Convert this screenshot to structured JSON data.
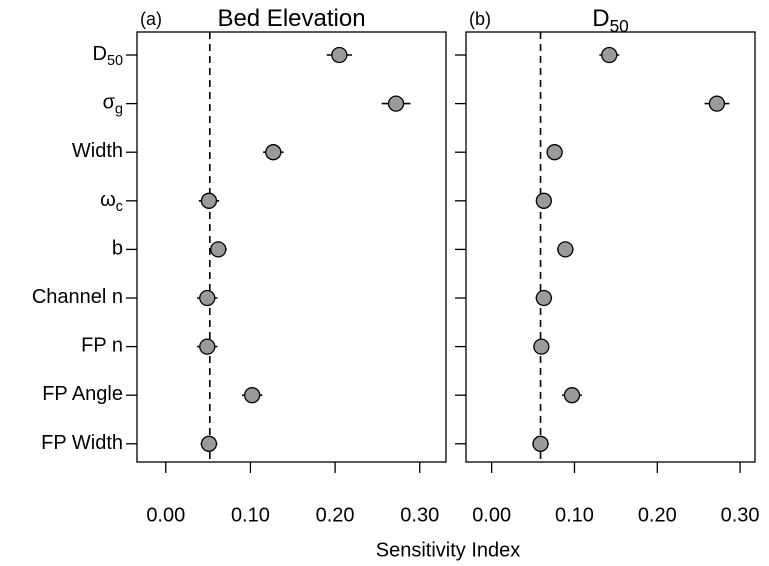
{
  "chart_data": [
    {
      "type": "dot",
      "panel_label": "(a)",
      "title": {
        "text": "Bed Elevation"
      },
      "xlabel": "Sensitivity Index",
      "categories": [
        {
          "text": "D",
          "sub": "50"
        },
        {
          "text": "σ",
          "sub": "g"
        },
        {
          "text": "Width"
        },
        {
          "text": "ω",
          "sub": "c"
        },
        {
          "text": "b"
        },
        {
          "text": "Channel n"
        },
        {
          "text": "FP n"
        },
        {
          "text": "FP Angle"
        },
        {
          "text": "FP Width"
        }
      ],
      "series": [
        {
          "color": "#9a9a9a",
          "values": [
            0.205,
            0.272,
            0.127,
            0.051,
            0.062,
            0.049,
            0.049,
            0.102,
            0.051
          ],
          "errors": [
            0.015,
            0.017,
            0.012,
            0.012,
            0.01,
            0.012,
            0.012,
            0.012,
            0.01
          ]
        }
      ],
      "reference_line": 0.052,
      "xlim": [
        -0.034,
        0.331
      ],
      "xticks": [
        {
          "value": 0,
          "label": "0.00"
        },
        {
          "value": 0.1,
          "label": "0.10"
        },
        {
          "value": 0.2,
          "label": "0.20"
        },
        {
          "value": 0.3,
          "label": "0.30"
        }
      ]
    },
    {
      "type": "dot",
      "panel_label": "(b)",
      "title": {
        "text": "D",
        "sub": "50"
      },
      "series": [
        {
          "color": "#9a9a9a",
          "values": [
            0.142,
            0.272,
            0.076,
            0.063,
            0.089,
            0.063,
            0.06,
            0.097,
            0.059
          ],
          "errors": [
            0.012,
            0.015,
            0.006,
            0.008,
            0.01,
            0.01,
            0.008,
            0.012,
            0.01
          ]
        }
      ],
      "reference_line": 0.059,
      "xlim": [
        -0.031,
        0.318
      ],
      "xticks": [
        {
          "value": 0,
          "label": "0.00"
        },
        {
          "value": 0.1,
          "label": "0.10"
        },
        {
          "value": 0.2,
          "label": "0.20"
        },
        {
          "value": 0.3,
          "label": "0.30"
        }
      ]
    }
  ]
}
